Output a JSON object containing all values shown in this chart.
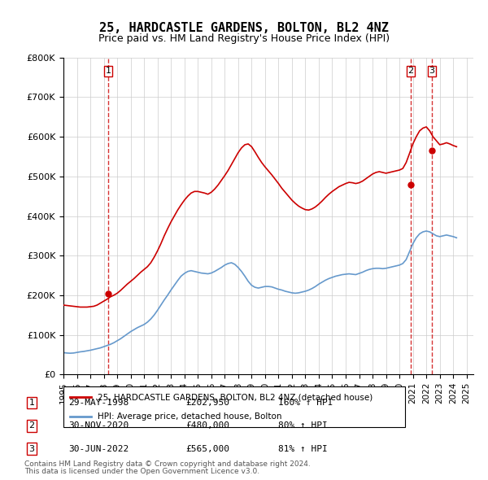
{
  "title": "25, HARDCASTLE GARDENS, BOLTON, BL2 4NZ",
  "subtitle": "Price paid vs. HM Land Registry's House Price Index (HPI)",
  "ylim": [
    0,
    800000
  ],
  "yticks": [
    0,
    100000,
    200000,
    300000,
    400000,
    500000,
    600000,
    700000,
    800000
  ],
  "ytick_labels": [
    "£0",
    "£100K",
    "£200K",
    "£300K",
    "£400K",
    "£500K",
    "£600K",
    "£700K",
    "£800K"
  ],
  "line_color_red": "#cc0000",
  "line_color_blue": "#6699cc",
  "marker_color_red": "#cc0000",
  "bg_color": "#ffffff",
  "grid_color": "#cccccc",
  "transaction_dates": [
    "1998-05-29",
    "2020-11-30",
    "2022-06-30"
  ],
  "transaction_prices": [
    202950,
    480000,
    565000
  ],
  "transaction_labels": [
    "1",
    "2",
    "3"
  ],
  "transaction_info": [
    {
      "num": "1",
      "date": "29-MAY-1998",
      "price": "£202,950",
      "hpi": "160% ↑ HPI"
    },
    {
      "num": "2",
      "date": "30-NOV-2020",
      "price": "£480,000",
      "hpi": "80% ↑ HPI"
    },
    {
      "num": "3",
      "date": "30-JUN-2022",
      "price": "£565,000",
      "hpi": "81% ↑ HPI"
    }
  ],
  "legend_line1": "25, HARDCASTLE GARDENS, BOLTON, BL2 4NZ (detached house)",
  "legend_line2": "HPI: Average price, detached house, Bolton",
  "footer1": "Contains HM Land Registry data © Crown copyright and database right 2024.",
  "footer2": "This data is licensed under the Open Government Licence v3.0.",
  "hpi_years": [
    1995.0,
    1995.25,
    1995.5,
    1995.75,
    1996.0,
    1996.25,
    1996.5,
    1996.75,
    1997.0,
    1997.25,
    1997.5,
    1997.75,
    1998.0,
    1998.25,
    1998.5,
    1998.75,
    1999.0,
    1999.25,
    1999.5,
    1999.75,
    2000.0,
    2000.25,
    2000.5,
    2000.75,
    2001.0,
    2001.25,
    2001.5,
    2001.75,
    2002.0,
    2002.25,
    2002.5,
    2002.75,
    2003.0,
    2003.25,
    2003.5,
    2003.75,
    2004.0,
    2004.25,
    2004.5,
    2004.75,
    2005.0,
    2005.25,
    2005.5,
    2005.75,
    2006.0,
    2006.25,
    2006.5,
    2006.75,
    2007.0,
    2007.25,
    2007.5,
    2007.75,
    2008.0,
    2008.25,
    2008.5,
    2008.75,
    2009.0,
    2009.25,
    2009.5,
    2009.75,
    2010.0,
    2010.25,
    2010.5,
    2010.75,
    2011.0,
    2011.25,
    2011.5,
    2011.75,
    2012.0,
    2012.25,
    2012.5,
    2012.75,
    2013.0,
    2013.25,
    2013.5,
    2013.75,
    2014.0,
    2014.25,
    2014.5,
    2014.75,
    2015.0,
    2015.25,
    2015.5,
    2015.75,
    2016.0,
    2016.25,
    2016.5,
    2016.75,
    2017.0,
    2017.25,
    2017.5,
    2017.75,
    2018.0,
    2018.25,
    2018.5,
    2018.75,
    2019.0,
    2019.25,
    2019.5,
    2019.75,
    2020.0,
    2020.25,
    2020.5,
    2020.75,
    2021.0,
    2021.25,
    2021.5,
    2021.75,
    2022.0,
    2022.25,
    2022.5,
    2022.75,
    2023.0,
    2023.25,
    2023.5,
    2023.75,
    2024.0,
    2024.25
  ],
  "hpi_values": [
    55000,
    54000,
    53500,
    54000,
    55500,
    57000,
    58000,
    59500,
    61000,
    63000,
    65000,
    67000,
    70000,
    73000,
    76000,
    80000,
    85000,
    90000,
    96000,
    102000,
    108000,
    113000,
    118000,
    122000,
    126000,
    132000,
    140000,
    150000,
    162000,
    175000,
    188000,
    200000,
    213000,
    225000,
    237000,
    248000,
    255000,
    260000,
    262000,
    260000,
    258000,
    256000,
    255000,
    254000,
    256000,
    260000,
    265000,
    270000,
    276000,
    280000,
    282000,
    278000,
    270000,
    260000,
    248000,
    235000,
    225000,
    220000,
    218000,
    220000,
    222000,
    222000,
    221000,
    218000,
    215000,
    213000,
    210000,
    208000,
    206000,
    205000,
    206000,
    208000,
    210000,
    213000,
    217000,
    222000,
    228000,
    233000,
    238000,
    242000,
    245000,
    248000,
    250000,
    252000,
    253000,
    254000,
    253000,
    252000,
    255000,
    258000,
    262000,
    265000,
    267000,
    268000,
    268000,
    267000,
    268000,
    270000,
    272000,
    274000,
    276000,
    280000,
    290000,
    310000,
    330000,
    345000,
    355000,
    360000,
    362000,
    360000,
    355000,
    350000,
    348000,
    350000,
    352000,
    350000,
    348000,
    345000
  ],
  "red_line_years": [
    1995.0,
    1995.25,
    1995.5,
    1995.75,
    1996.0,
    1996.25,
    1996.5,
    1996.75,
    1997.0,
    1997.25,
    1997.5,
    1997.75,
    1998.0,
    1998.25,
    1998.5,
    1998.75,
    1999.0,
    1999.25,
    1999.5,
    1999.75,
    2000.0,
    2000.25,
    2000.5,
    2000.75,
    2001.0,
    2001.25,
    2001.5,
    2001.75,
    2002.0,
    2002.25,
    2002.5,
    2002.75,
    2003.0,
    2003.25,
    2003.5,
    2003.75,
    2004.0,
    2004.25,
    2004.5,
    2004.75,
    2005.0,
    2005.25,
    2005.5,
    2005.75,
    2006.0,
    2006.25,
    2006.5,
    2006.75,
    2007.0,
    2007.25,
    2007.5,
    2007.75,
    2008.0,
    2008.25,
    2008.5,
    2008.75,
    2009.0,
    2009.25,
    2009.5,
    2009.75,
    2010.0,
    2010.25,
    2010.5,
    2010.75,
    2011.0,
    2011.25,
    2011.5,
    2011.75,
    2012.0,
    2012.25,
    2012.5,
    2012.75,
    2013.0,
    2013.25,
    2013.5,
    2013.75,
    2014.0,
    2014.25,
    2014.5,
    2014.75,
    2015.0,
    2015.25,
    2015.5,
    2015.75,
    2016.0,
    2016.25,
    2016.5,
    2016.75,
    2017.0,
    2017.25,
    2017.5,
    2017.75,
    2018.0,
    2018.25,
    2018.5,
    2018.75,
    2019.0,
    2019.25,
    2019.5,
    2019.75,
    2020.0,
    2020.25,
    2020.5,
    2020.75,
    2021.0,
    2021.25,
    2021.5,
    2021.75,
    2022.0,
    2022.25,
    2022.5,
    2022.75,
    2023.0,
    2023.25,
    2023.5,
    2023.75,
    2024.0,
    2024.25
  ],
  "red_line_values": [
    175000,
    174000,
    173000,
    172000,
    171000,
    170000,
    170000,
    170000,
    171000,
    172000,
    175000,
    180000,
    185000,
    190000,
    196000,
    200000,
    205000,
    212000,
    220000,
    228000,
    235000,
    242000,
    250000,
    258000,
    265000,
    272000,
    282000,
    296000,
    312000,
    330000,
    350000,
    368000,
    385000,
    400000,
    415000,
    428000,
    440000,
    450000,
    458000,
    462000,
    462000,
    460000,
    458000,
    455000,
    460000,
    468000,
    478000,
    490000,
    502000,
    515000,
    530000,
    545000,
    560000,
    572000,
    580000,
    582000,
    575000,
    562000,
    548000,
    535000,
    524000,
    514000,
    504000,
    493000,
    482000,
    470000,
    460000,
    450000,
    440000,
    432000,
    425000,
    420000,
    416000,
    415000,
    418000,
    423000,
    430000,
    438000,
    447000,
    455000,
    462000,
    468000,
    474000,
    478000,
    482000,
    485000,
    484000,
    482000,
    484000,
    488000,
    494000,
    500000,
    506000,
    510000,
    512000,
    510000,
    508000,
    510000,
    512000,
    514000,
    516000,
    520000,
    535000,
    558000,
    582000,
    600000,
    615000,
    622000,
    625000,
    615000,
    600000,
    590000,
    580000,
    582000,
    585000,
    582000,
    578000,
    575000
  ]
}
